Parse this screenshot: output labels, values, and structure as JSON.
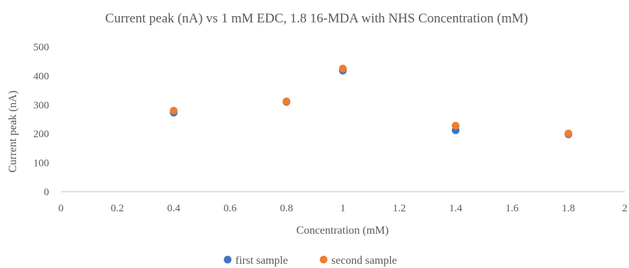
{
  "chart_data": {
    "type": "scatter",
    "title": "Current peak (nA) vs 1 mM EDC, 1.8 16-MDA with NHS Concentration (mM)",
    "xlabel": "Concentration (mM)",
    "ylabel": "Current peak (nA)",
    "xlim": [
      0,
      2
    ],
    "ylim": [
      0,
      500
    ],
    "xticks": [
      "0",
      "0.2",
      "0.4",
      "0.6",
      "0.8",
      "1",
      "1.2",
      "1.4",
      "1.6",
      "1.8",
      "2"
    ],
    "yticks": [
      "0",
      "100",
      "200",
      "300",
      "400",
      "500"
    ],
    "grid": false,
    "legend_position": "bottom",
    "series": [
      {
        "name": "first sample",
        "color": "#4472C4",
        "points": [
          {
            "x": 0.4,
            "y": 273
          },
          {
            "x": 0.8,
            "y": 310
          },
          {
            "x": 1.0,
            "y": 418
          },
          {
            "x": 1.4,
            "y": 212
          },
          {
            "x": 1.8,
            "y": 198
          }
        ]
      },
      {
        "name": "second sample",
        "color": "#ED7D31",
        "points": [
          {
            "x": 0.4,
            "y": 280
          },
          {
            "x": 0.8,
            "y": 312
          },
          {
            "x": 1.0,
            "y": 425
          },
          {
            "x": 1.4,
            "y": 228
          },
          {
            "x": 1.8,
            "y": 201
          }
        ]
      }
    ]
  }
}
